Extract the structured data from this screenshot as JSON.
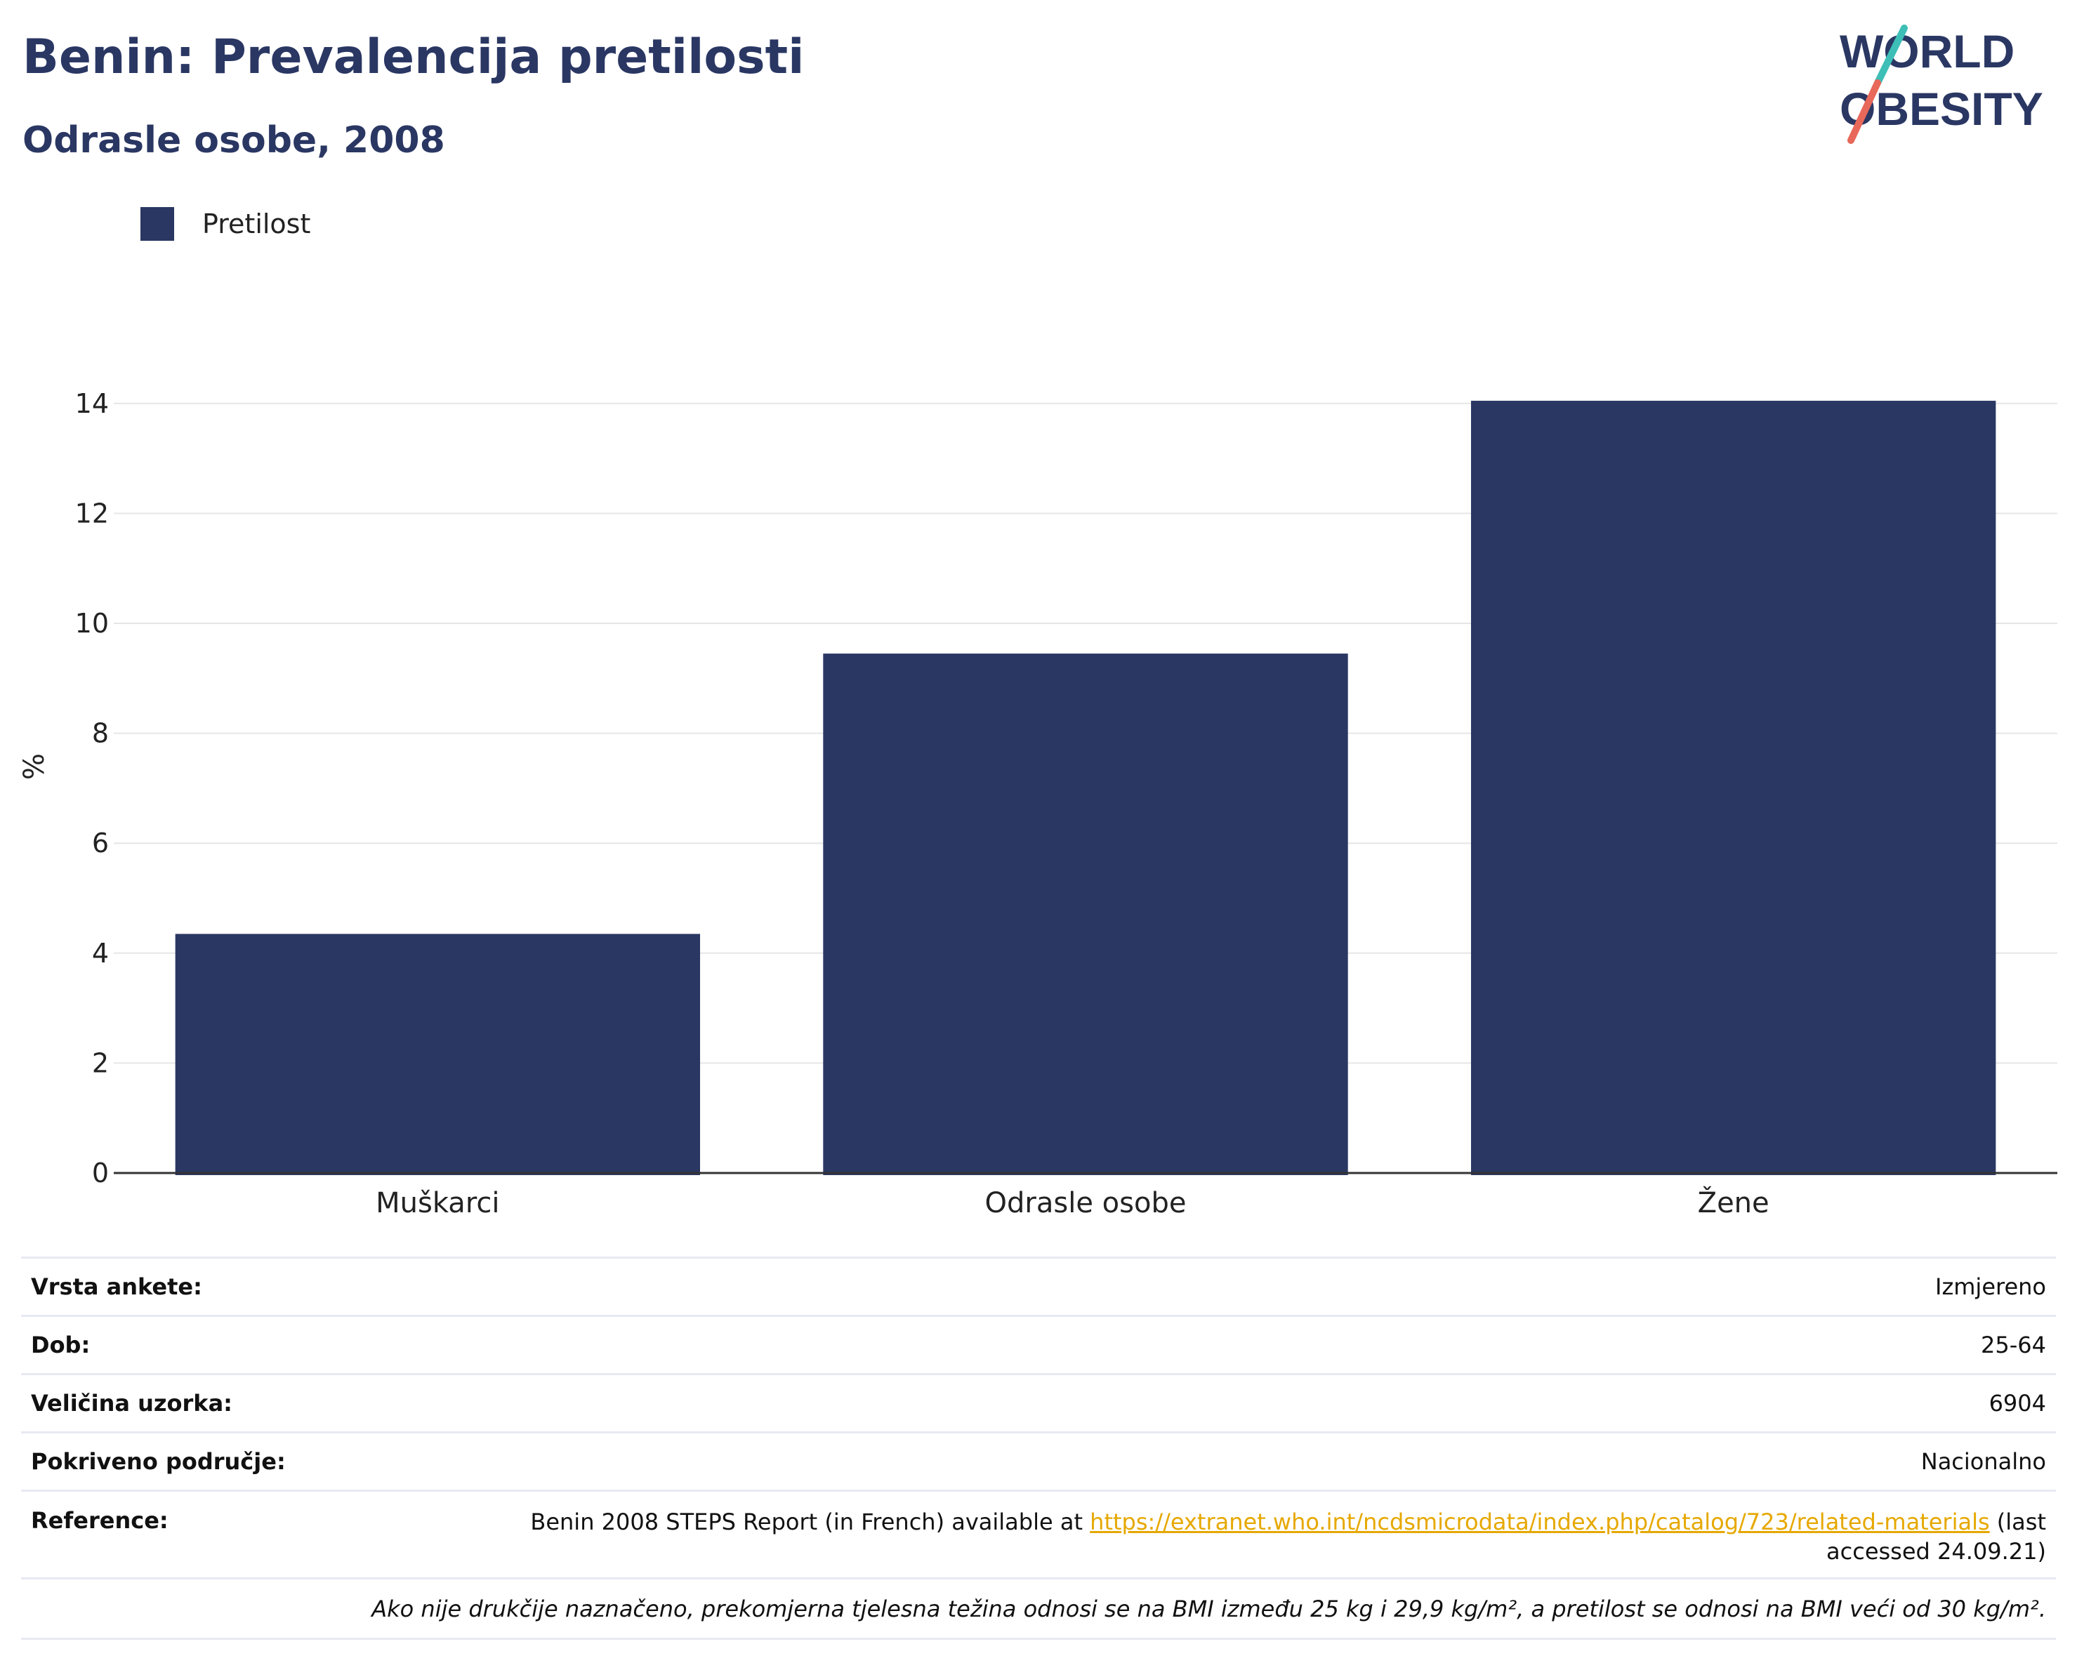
{
  "header": {
    "title": "Benin: Prevalencija pretilosti",
    "subtitle": "Odrasle osobe, 2008"
  },
  "logo": {
    "line1": "WORLD",
    "line2": "OBESITY",
    "colors": {
      "text": "#2a3763",
      "slash_top": "#3dbfb7",
      "slash_bottom": "#e8685a"
    }
  },
  "colors": {
    "bar": "#2a3763",
    "grid": "#e6e6e6",
    "axis": "#333333",
    "link": "#e6a800"
  },
  "chart_data": {
    "type": "bar",
    "categories": [
      "Muškarci",
      "Odrasle osobe",
      "Žene"
    ],
    "series": [
      {
        "name": "Pretilost",
        "values": [
          4.35,
          9.45,
          14.05
        ]
      }
    ],
    "title": "Benin: Prevalencija pretilosti",
    "subtitle": "Odrasle osobe, 2008",
    "xlabel": "",
    "ylabel": "%",
    "ylim": [
      0,
      14.7
    ],
    "yticks": [
      0,
      2,
      4,
      6,
      8,
      10,
      12,
      14
    ],
    "grid": true,
    "legend": "top-left"
  },
  "info": {
    "rows": [
      {
        "label": "Vrsta ankete:",
        "value": "Izmjereno"
      },
      {
        "label": "Dob:",
        "value": "25-64"
      },
      {
        "label": "Veličina uzorka:",
        "value": "6904"
      },
      {
        "label": "Pokriveno područje:",
        "value": "Nacionalno"
      }
    ],
    "reference": {
      "label": "Reference:",
      "prefix": "Benin 2008 STEPS Report (in French) available at ",
      "link": "https://extranet.who.int/ncdsmicrodata/index.php/catalog/723/related-materials",
      "suffix": " (last accessed 24.09.21)"
    },
    "note": "Ako nije drukčije naznačeno, prekomjerna tjelesna težina odnosi se na BMI između 25 kg i 29,9 kg/m², a pretilost se odnosi na BMI veći od 30 kg/m²."
  }
}
